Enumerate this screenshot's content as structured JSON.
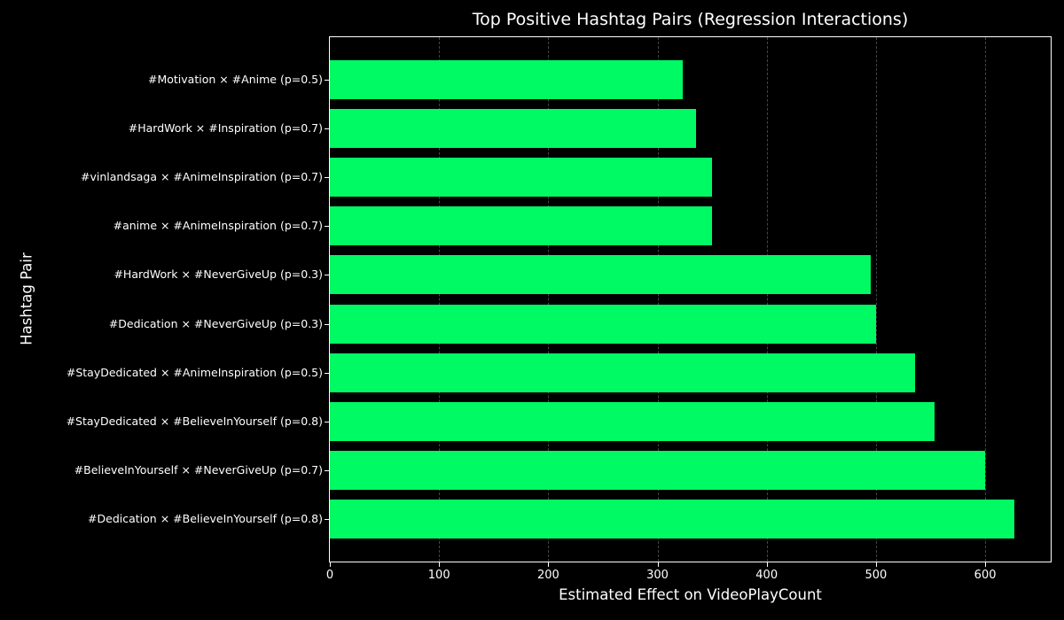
{
  "chart_data": {
    "type": "bar",
    "orientation": "horizontal",
    "title": "Top Positive Hashtag Pairs (Regression Interactions)",
    "xlabel": "Estimated Effect on VideoPlayCount",
    "ylabel": "Hashtag Pair",
    "categories": [
      "#Motivation × #Anime (p=0.5)",
      "#HardWork × #Inspiration (p=0.7)",
      "#vinlandsaga × #AnimeInspiration (p=0.7)",
      "#anime × #AnimeInspiration (p=0.7)",
      "#HardWork × #NeverGiveUp (p=0.3)",
      "#Dedication × #NeverGiveUp (p=0.3)",
      "#StayDedicated × #AnimeInspiration (p=0.5)",
      "#StayDedicated × #BelieveInYourself (p=0.8)",
      "#BelieveInYourself × #NeverGiveUp (p=0.7)",
      "#Dedication × #BelieveInYourself (p=0.8)"
    ],
    "values": [
      323,
      335,
      350,
      350,
      495,
      500,
      536,
      554,
      600,
      627
    ],
    "xlim": [
      0,
      660
    ],
    "xticks": [
      0,
      100,
      200,
      300,
      400,
      500,
      600
    ],
    "bar_color": "#00fa64",
    "background_color": "#000000",
    "text_color": "#ffffff",
    "grid": true,
    "gridline_color": "#454545",
    "gridline_style": "dashed",
    "legend": "none"
  }
}
